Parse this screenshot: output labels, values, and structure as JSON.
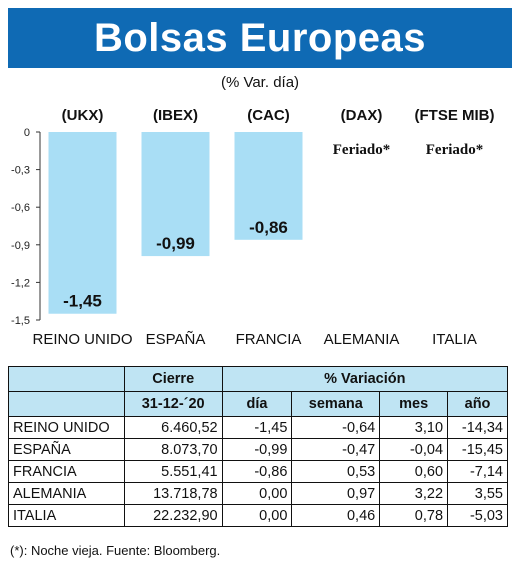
{
  "banner": {
    "title": "Bolsas Europeas"
  },
  "subtitle": "(% Var. día)",
  "chart_data": {
    "type": "bar",
    "categories": [
      "(UKX)",
      "(IBEX)",
      "(CAC)",
      "(DAX)",
      "(FTSE MIB)"
    ],
    "country_labels": [
      "REINO UNIDO",
      "ESPAÑA",
      "FRANCIA",
      "ALEMANIA",
      "ITALIA"
    ],
    "values": [
      -1.45,
      -0.99,
      -0.86,
      null,
      null
    ],
    "data_labels": [
      "-1,45",
      "-0,99",
      "-0,86",
      "Feriado*",
      "Feriado*"
    ],
    "yticks": [
      0,
      -0.3,
      -0.6,
      -0.9,
      -1.2,
      -1.5
    ],
    "ytick_labels": [
      "0",
      "-0,3",
      "-0,6",
      "-0,9",
      "-1,2",
      "-1,5"
    ],
    "ylim": [
      -1.5,
      0
    ],
    "grid": false,
    "bar_color": "#a9def5"
  },
  "table": {
    "header1": [
      "",
      "Cierre",
      "% Variación"
    ],
    "header2": [
      "",
      "31-12-´20",
      "día",
      "semana",
      "mes",
      "año"
    ],
    "rows": [
      [
        "REINO UNIDO",
        "6.460,52",
        "-1,45",
        "-0,64",
        "3,10",
        "-14,34"
      ],
      [
        "ESPAÑA",
        "8.073,70",
        "-0,99",
        "-0,47",
        "-0,04",
        "-15,45"
      ],
      [
        "FRANCIA",
        "5.551,41",
        "-0,86",
        "0,53",
        "0,60",
        "-7,14"
      ],
      [
        "ALEMANIA",
        "13.718,78",
        "0,00",
        "0,97",
        "3,22",
        "3,55"
      ],
      [
        "ITALIA",
        "22.232,90",
        "0,00",
        "0,46",
        "0,78",
        "-5,03"
      ]
    ]
  },
  "footnote": "(*): Noche vieja. Fuente: Bloomberg.",
  "colors": {
    "banner": "#0f6ab4",
    "bar": "#a9def5",
    "header_fill": "#bfe4f3"
  }
}
